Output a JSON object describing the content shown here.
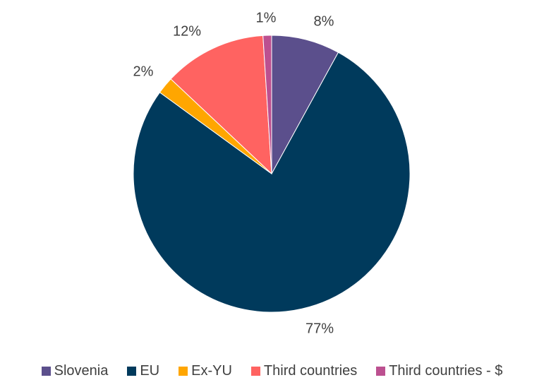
{
  "chart_data": {
    "type": "pie",
    "title": "",
    "categories": [
      "Slovenia",
      "EU",
      "Ex-YU",
      "Third countries",
      "Third countries - $"
    ],
    "values": [
      8,
      77,
      2,
      12,
      1
    ],
    "value_labels": [
      "8%",
      "77%",
      "2%",
      "12%",
      "1%"
    ],
    "colors": [
      "#5b4f8c",
      "#003a5c",
      "#ffa600",
      "#ff6361",
      "#bc5090"
    ],
    "legend_position": "bottom",
    "start_angle": "12 o'clock",
    "direction": "clockwise"
  }
}
